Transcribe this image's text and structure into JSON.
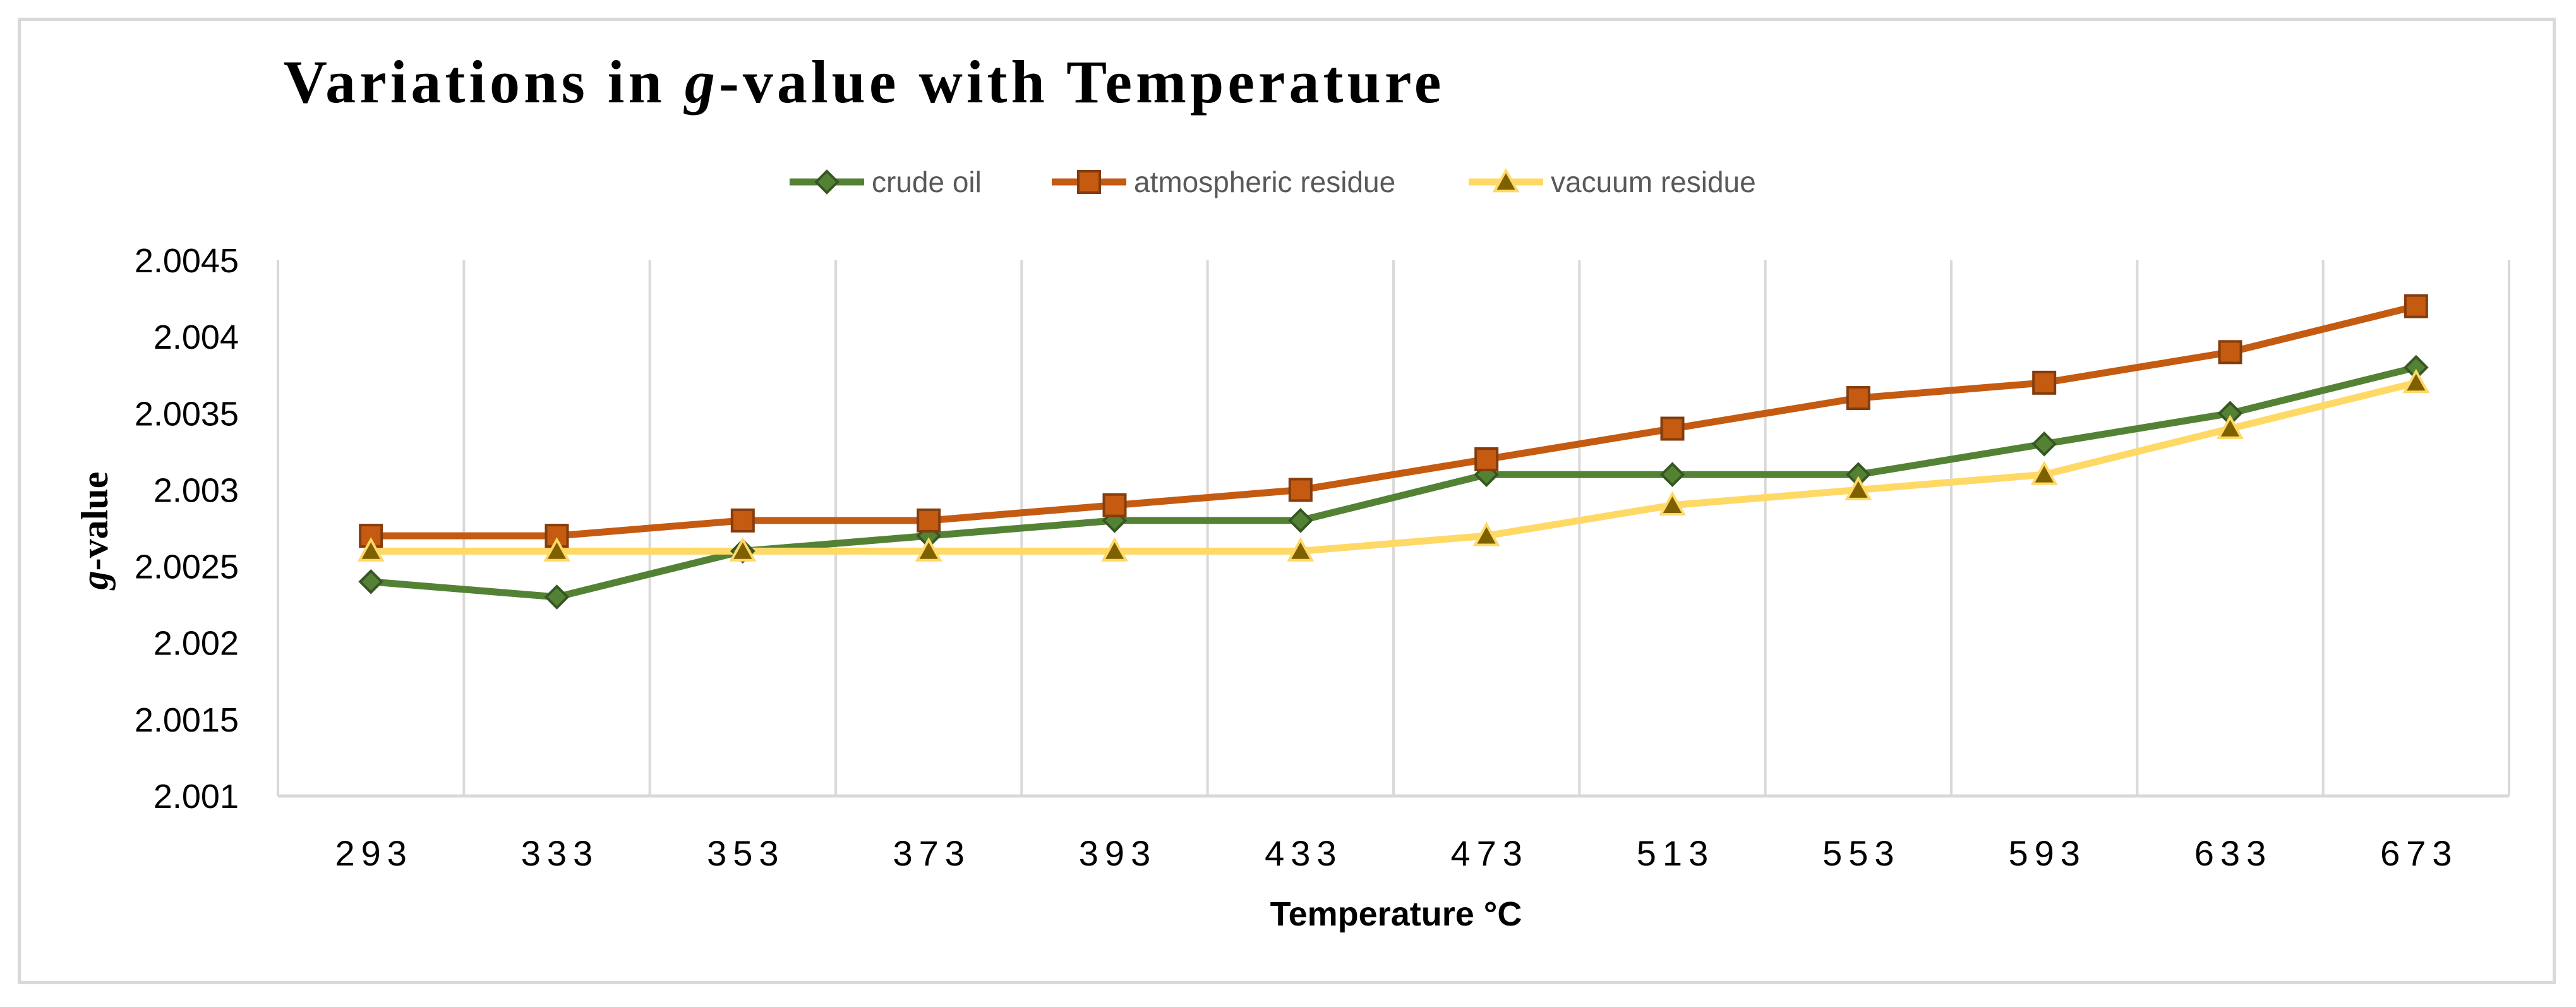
{
  "chart_data": {
    "type": "line",
    "title_prefix": "Variations in ",
    "title_italic": "g",
    "title_suffix": "-value with Temperature",
    "xlabel": "Temperature  °C",
    "ylabel_italic": "g",
    "ylabel_suffix": "-value",
    "categories": [
      "293",
      "333",
      "353",
      "373",
      "393",
      "433",
      "473",
      "513",
      "553",
      "593",
      "633",
      "673"
    ],
    "ylim": [
      2.001,
      2.0045
    ],
    "yticks": [
      "2.001",
      "2.0015",
      "2.002",
      "2.0025",
      "2.003",
      "2.0035",
      "2.004",
      "2.0045"
    ],
    "grid": "vertical",
    "legend_position": "top",
    "series": [
      {
        "name": "crude oil",
        "color": "#548235",
        "marker_fill": "#548235",
        "marker_stroke": "#375623",
        "marker": "diamond",
        "values": [
          2.0024,
          2.0023,
          2.0026,
          2.0027,
          2.0028,
          2.0028,
          2.0031,
          2.0031,
          2.0031,
          2.0033,
          2.0035,
          2.0038
        ]
      },
      {
        "name": "atmospheric residue",
        "color": "#C55A11",
        "marker_fill": "#C55A11",
        "marker_stroke": "#843C0C",
        "marker": "square",
        "values": [
          2.0027,
          2.0027,
          2.0028,
          2.0028,
          2.0029,
          2.003,
          2.0032,
          2.0034,
          2.0036,
          2.0037,
          2.0039,
          2.0042
        ]
      },
      {
        "name": "vacuum residue",
        "color": "#FFD966",
        "marker_fill": "#7F6000",
        "marker_stroke": "#FFD966",
        "marker": "triangle",
        "values": [
          2.0026,
          2.0026,
          2.0026,
          2.0026,
          2.0026,
          2.0026,
          2.0027,
          2.0029,
          2.003,
          2.0031,
          2.0034,
          2.0037
        ]
      }
    ]
  }
}
